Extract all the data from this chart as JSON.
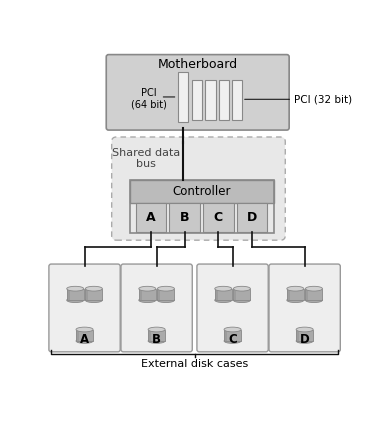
{
  "motherboard_label": "Motherboard",
  "pci_64_label": "PCI\n(64 bit)",
  "pci_32_label": "PCI (32 bit)",
  "shared_bus_label": "Shared data\nbus",
  "controller_label": "Controller",
  "channel_labels": [
    "A",
    "B",
    "C",
    "D"
  ],
  "disk_case_labels": [
    "A",
    "B",
    "C",
    "D"
  ],
  "bottom_label": "External disk cases",
  "bg_color": "#ffffff",
  "motherboard_fill": "#d0d0d0",
  "motherboard_edge": "#888888",
  "slot_fill": "#f0f0f0",
  "slot_edge": "#888888",
  "shared_bus_fill": "#e8e8e8",
  "controller_fill": "#bbbbbb",
  "channel_fill": "#c8c8c8",
  "disk_case_fill": "#eeeeee",
  "disk_case_edge": "#999999",
  "cyl_light": "#d0d0d0",
  "cyl_mid": "#aaaaaa",
  "cyl_dark": "#888888",
  "line_color": "#111111"
}
